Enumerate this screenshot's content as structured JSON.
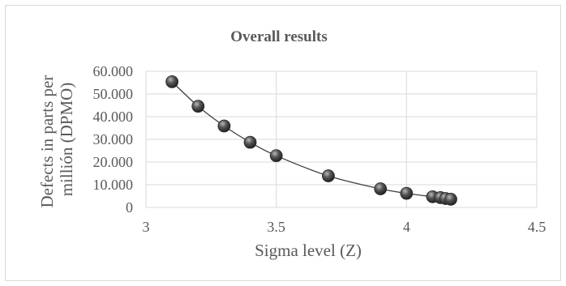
{
  "chart_data": {
    "type": "scatter",
    "title": "Overall results",
    "xlabel": "Sigma level (Z)",
    "ylabel": "Defects in parts per millión (DPMO)",
    "ylabel_lines": [
      "Defects in parts per",
      "millión (DPMO)"
    ],
    "xlim": [
      3,
      4.5
    ],
    "ylim": [
      0,
      60000
    ],
    "x_ticks": [
      3,
      3.5,
      4,
      4.5
    ],
    "x_tick_labels": [
      "3",
      "3.5",
      "4",
      "4.5"
    ],
    "y_ticks": [
      0,
      10000,
      20000,
      30000,
      40000,
      50000,
      60000
    ],
    "y_tick_labels": [
      "0",
      "10.000",
      "20.000",
      "30.000",
      "40.000",
      "50.000",
      "60.000"
    ],
    "grid": true,
    "legend": "none",
    "marker_color": "#555555",
    "line_color": "#404040",
    "series": [
      {
        "x": [
          3.1,
          3.2,
          3.3,
          3.4,
          3.5,
          3.7,
          3.9,
          4.0,
          4.1,
          4.13,
          4.15,
          4.17
        ],
        "y": [
          55400,
          44600,
          35900,
          28700,
          22800,
          13900,
          8200,
          6200,
          4700,
          4300,
          3900,
          3600
        ]
      }
    ]
  }
}
